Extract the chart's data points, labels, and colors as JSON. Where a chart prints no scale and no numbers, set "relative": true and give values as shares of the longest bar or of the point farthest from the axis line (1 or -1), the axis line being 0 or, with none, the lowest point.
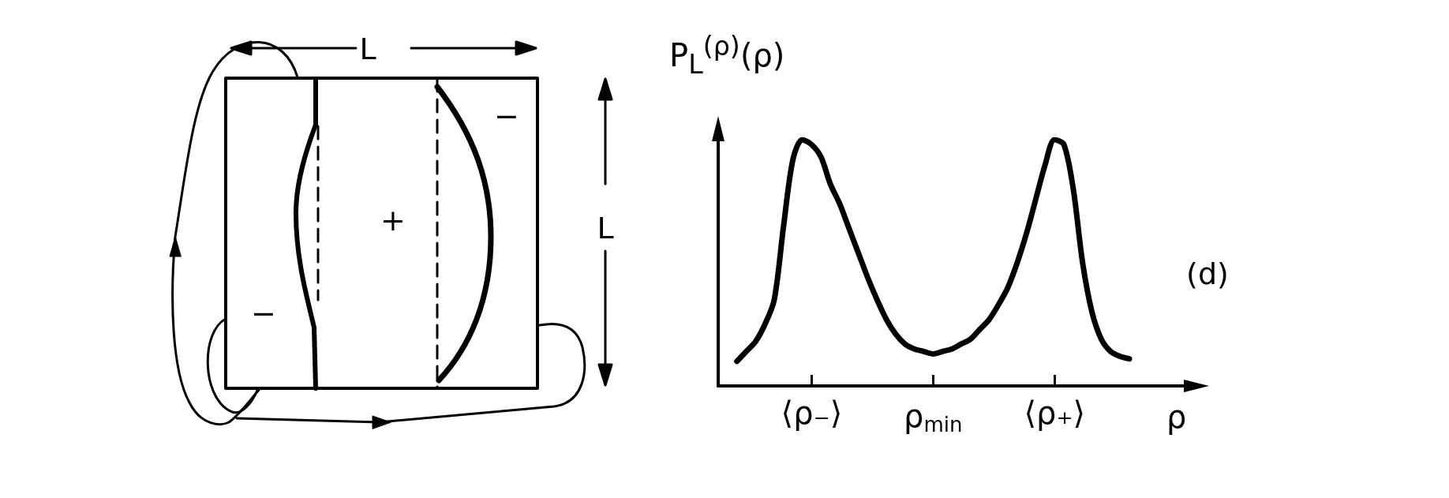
{
  "chart_data": {
    "type": "line",
    "relative": true,
    "color": "#000000",
    "categories": [
      null,
      null,
      null,
      null,
      null,
      null,
      null,
      null,
      null,
      null,
      "⟨ρ₋⟩",
      null,
      null,
      null,
      null,
      null,
      null,
      null,
      null,
      null,
      null,
      null,
      null,
      "ρ$_{min}$",
      null,
      null,
      null,
      null,
      null,
      null,
      null,
      null,
      null,
      null,
      null,
      null,
      "⟨ρ₊⟩",
      null,
      null,
      null,
      null,
      null,
      null,
      null,
      null,
      null,
      null,
      null,
      null,
      null,
      null
    ],
    "values": [
      null,
      null,
      0.1,
      0.14,
      0.18,
      0.25,
      0.35,
      0.65,
      0.92,
      1,
      0.98,
      0.93,
      0.82,
      0.74,
      0.64,
      0.54,
      0.44,
      0.35,
      0.27,
      0.21,
      0.17,
      0.15,
      0.14,
      0.13,
      0.14,
      0.15,
      0.17,
      0.19,
      0.23,
      0.27,
      0.33,
      0.4,
      0.5,
      0.62,
      0.76,
      0.9,
      1,
      0.98,
      0.8,
      0.5,
      0.3,
      0.19,
      0.14,
      0.12,
      0.11,
      null,
      null,
      null,
      null,
      null,
      null
    ],
    "xlabel": "ρ",
    "ylabel": "P$_{L}$$^{(ρ)}$(ρ)",
    "annotations": [
      "L",
      "L",
      "+",
      "−",
      "−",
      "(d)"
    ]
  }
}
